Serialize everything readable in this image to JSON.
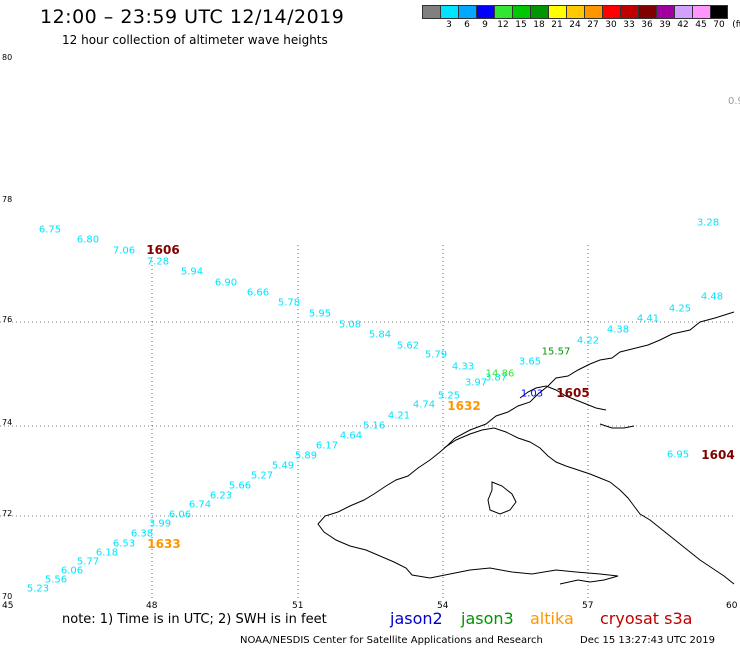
{
  "header": {
    "title": "12:00 – 23:59 UTC 12/14/2019",
    "subtitle": "12 hour collection of altimeter wave heights"
  },
  "color_scale": {
    "labels": [
      "3",
      "6",
      "9",
      "12",
      "15",
      "18",
      "21",
      "24",
      "27",
      "30",
      "33",
      "36",
      "39",
      "42",
      "45",
      "70"
    ],
    "unit": "(ft)",
    "colors": [
      "#808080",
      "#00e5ff",
      "#00a8ff",
      "#0000ff",
      "#33e633",
      "#00c800",
      "#009600",
      "#ffff00",
      "#ffc800",
      "#ff9600",
      "#ff0000",
      "#c00000",
      "#800000",
      "#a000a0",
      "#d2a0ff",
      "#ff96ff",
      "#000000"
    ]
  },
  "axes": {
    "lat_labels": [
      "80",
      "78",
      "76",
      "74",
      "72",
      "70"
    ],
    "lon_labels": [
      "45",
      "48",
      "51",
      "54",
      "57",
      "60"
    ]
  },
  "map_values": [
    {
      "text": "6.75",
      "color": "cyan"
    },
    {
      "text": "6.80",
      "color": "cyan"
    },
    {
      "text": "7.06",
      "color": "cyan"
    },
    {
      "text": "7.28",
      "color": "cyan"
    },
    {
      "text": "5.94",
      "color": "cyan"
    },
    {
      "text": "6.90",
      "color": "cyan"
    },
    {
      "text": "6.66",
      "color": "cyan"
    },
    {
      "text": "5.78",
      "color": "cyan"
    },
    {
      "text": "5.95",
      "color": "cyan"
    },
    {
      "text": "5.08",
      "color": "cyan"
    },
    {
      "text": "5.84",
      "color": "cyan"
    },
    {
      "text": "5.62",
      "color": "cyan"
    },
    {
      "text": "5.79",
      "color": "cyan"
    },
    {
      "text": "4.33",
      "color": "cyan"
    },
    {
      "text": "3.97",
      "color": "cyan"
    },
    {
      "text": "3.87",
      "color": "cyan"
    },
    {
      "text": "3.65",
      "color": "cyan"
    },
    {
      "text": "5.25",
      "color": "cyan"
    },
    {
      "text": "4.74",
      "color": "cyan"
    },
    {
      "text": "4.21",
      "color": "cyan"
    },
    {
      "text": "5.16",
      "color": "cyan"
    },
    {
      "text": "4.64",
      "color": "cyan"
    },
    {
      "text": "6.17",
      "color": "cyan"
    },
    {
      "text": "5.89",
      "color": "cyan"
    },
    {
      "text": "5.49",
      "color": "cyan"
    },
    {
      "text": "5.27",
      "color": "cyan"
    },
    {
      "text": "5.66",
      "color": "cyan"
    },
    {
      "text": "6.23",
      "color": "cyan"
    },
    {
      "text": "6.74",
      "color": "cyan"
    },
    {
      "text": "6.06",
      "color": "cyan"
    },
    {
      "text": "3.99",
      "color": "cyan"
    },
    {
      "text": "6.38",
      "color": "cyan"
    },
    {
      "text": "6.53",
      "color": "cyan"
    },
    {
      "text": "6.18",
      "color": "cyan"
    },
    {
      "text": "5.77",
      "color": "cyan"
    },
    {
      "text": "6.06",
      "color": "cyan"
    },
    {
      "text": "5.56",
      "color": "cyan"
    },
    {
      "text": "5.23",
      "color": "cyan"
    },
    {
      "text": "3.28",
      "color": "cyan"
    },
    {
      "text": "4.48",
      "color": "cyan"
    },
    {
      "text": "4.25",
      "color": "cyan"
    },
    {
      "text": "4.41",
      "color": "cyan"
    },
    {
      "text": "4.38",
      "color": "cyan"
    },
    {
      "text": "4.22",
      "color": "cyan"
    },
    {
      "text": "6.95",
      "color": "cyan"
    },
    {
      "text": "15.57",
      "color": "green"
    },
    {
      "text": "14.86",
      "color": "lightgreen"
    },
    {
      "text": "1.03",
      "color": "blue"
    }
  ],
  "pass_times": [
    {
      "text": "1606",
      "sat": "cryosat s3a"
    },
    {
      "text": "1632",
      "sat": "altika"
    },
    {
      "text": "1633",
      "sat": "altika"
    },
    {
      "text": "1605",
      "sat": "cryosat s3a"
    },
    {
      "text": "1604",
      "sat": "cryosat s3a"
    }
  ],
  "footer": {
    "note": "note: 1) Time is in UTC; 2) SWH is in feet",
    "satellites": [
      {
        "name": "jason2",
        "color": "#0000cc"
      },
      {
        "name": "jason3",
        "color": "#009600"
      },
      {
        "name": "altika",
        "color": "#ff9600"
      },
      {
        "name": "cryosat s3a",
        "color": "#c00000"
      }
    ],
    "credit": "NOAA/NESDIS Center for Satellite Applications and Research",
    "timestamp": "Dec 15 13:27:43 UTC 2019"
  },
  "partial_label": "0.9"
}
